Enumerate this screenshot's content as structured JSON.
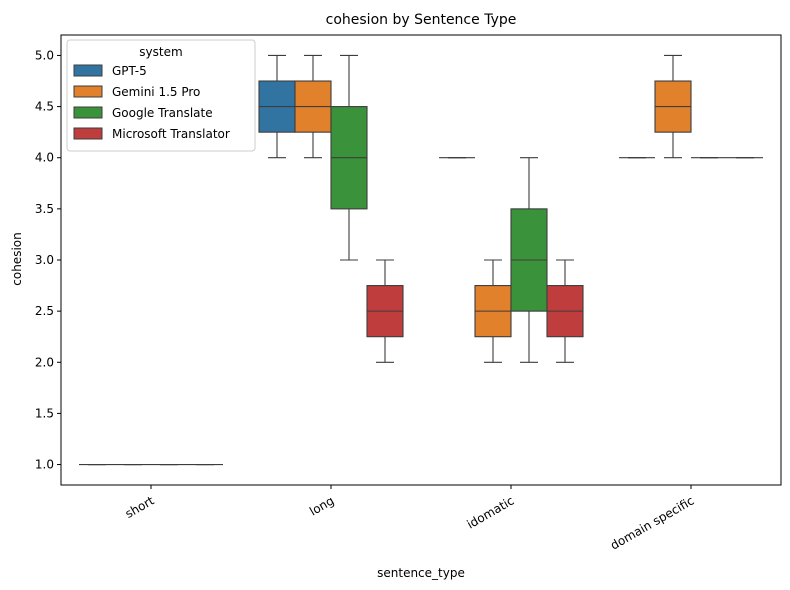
{
  "chart_data": {
    "type": "boxplot",
    "title": "cohesion by Sentence Type",
    "xlabel": "sentence_type",
    "ylabel": "cohesion",
    "ylim": [
      0.8,
      5.2
    ],
    "yticks": [
      1.0,
      1.5,
      2.0,
      2.5,
      3.0,
      3.5,
      4.0,
      4.5,
      5.0
    ],
    "ytick_labels": [
      "1.0",
      "1.5",
      "2.0",
      "2.5",
      "3.0",
      "3.5",
      "4.0",
      "4.5",
      "5.0"
    ],
    "categories": [
      "short",
      "long",
      "idomatic",
      "domain specific"
    ],
    "xtick_rotation_deg": -30,
    "grid": false,
    "legend": {
      "title": "system",
      "placement": "top-left",
      "entries": [
        "GPT-5",
        "Gemini 1.5 Pro",
        "Google Translate",
        "Microsoft Translator"
      ]
    },
    "series": [
      {
        "name": "GPT-5",
        "color": "#3274a1",
        "boxes": [
          {
            "category": "short",
            "min": 1.0,
            "q1": 1.0,
            "median": 1.0,
            "q3": 1.0,
            "max": 1.0
          },
          {
            "category": "long",
            "min": 4.0,
            "q1": 4.25,
            "median": 4.5,
            "q3": 4.75,
            "max": 5.0
          },
          {
            "category": "idomatic",
            "min": 4.0,
            "q1": 4.0,
            "median": 4.0,
            "q3": 4.0,
            "max": 4.0
          },
          {
            "category": "domain specific",
            "min": 4.0,
            "q1": 4.0,
            "median": 4.0,
            "q3": 4.0,
            "max": 4.0
          }
        ]
      },
      {
        "name": "Gemini 1.5 Pro",
        "color": "#e1812c",
        "boxes": [
          {
            "category": "short",
            "min": 1.0,
            "q1": 1.0,
            "median": 1.0,
            "q3": 1.0,
            "max": 1.0
          },
          {
            "category": "long",
            "min": 4.0,
            "q1": 4.25,
            "median": 4.5,
            "q3": 4.75,
            "max": 5.0
          },
          {
            "category": "idomatic",
            "min": 2.0,
            "q1": 2.25,
            "median": 2.5,
            "q3": 2.75,
            "max": 3.0
          },
          {
            "category": "domain specific",
            "min": 4.0,
            "q1": 4.25,
            "median": 4.5,
            "q3": 4.75,
            "max": 5.0
          }
        ]
      },
      {
        "name": "Google Translate",
        "color": "#3a923a",
        "boxes": [
          {
            "category": "short",
            "min": 1.0,
            "q1": 1.0,
            "median": 1.0,
            "q3": 1.0,
            "max": 1.0
          },
          {
            "category": "long",
            "min": 3.0,
            "q1": 3.5,
            "median": 4.0,
            "q3": 4.5,
            "max": 5.0
          },
          {
            "category": "idomatic",
            "min": 2.0,
            "q1": 2.5,
            "median": 3.0,
            "q3": 3.5,
            "max": 4.0
          },
          {
            "category": "domain specific",
            "min": 4.0,
            "q1": 4.0,
            "median": 4.0,
            "q3": 4.0,
            "max": 4.0
          }
        ]
      },
      {
        "name": "Microsoft Translator",
        "color": "#c03d3e",
        "boxes": [
          {
            "category": "short",
            "min": 1.0,
            "q1": 1.0,
            "median": 1.0,
            "q3": 1.0,
            "max": 1.0
          },
          {
            "category": "long",
            "min": 2.0,
            "q1": 2.25,
            "median": 2.5,
            "q3": 2.75,
            "max": 3.0
          },
          {
            "category": "idomatic",
            "min": 2.0,
            "q1": 2.25,
            "median": 2.5,
            "q3": 2.75,
            "max": 3.0
          },
          {
            "category": "domain specific",
            "min": 4.0,
            "q1": 4.0,
            "median": 4.0,
            "q3": 4.0,
            "max": 4.0
          }
        ]
      }
    ]
  }
}
